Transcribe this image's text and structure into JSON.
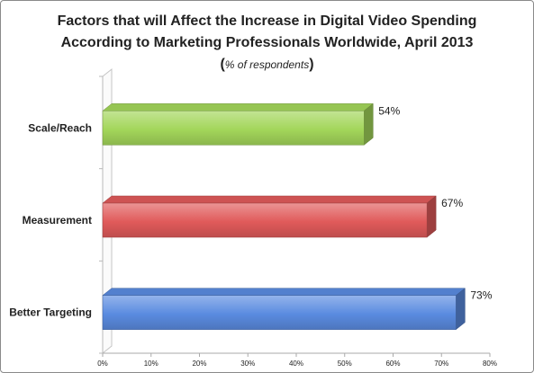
{
  "chart_data": {
    "type": "bar",
    "orientation": "horizontal",
    "title_lines": [
      "Factors that will Affect the Increase in Digital Video Spending",
      "According to Marketing Professionals Worldwide, April 2013"
    ],
    "subtitle": {
      "open": "(",
      "text": "% of respondents",
      "close": ")"
    },
    "categories": [
      "Scale/Reach",
      "Measurement",
      "Better Targeting"
    ],
    "values": [
      54,
      67,
      73
    ],
    "data_labels": [
      "54%",
      "67%",
      "73%"
    ],
    "colors": [
      "#a3d65a",
      "#e05a5a",
      "#5a8be0"
    ],
    "xlim": [
      0,
      80
    ],
    "x_ticks": [
      0,
      10,
      20,
      30,
      40,
      50,
      60,
      70,
      80
    ],
    "x_tick_labels": [
      "0%",
      "10%",
      "20%",
      "30%",
      "40%",
      "50%",
      "60%",
      "70%",
      "80%"
    ],
    "grid": false,
    "legend": "none"
  }
}
